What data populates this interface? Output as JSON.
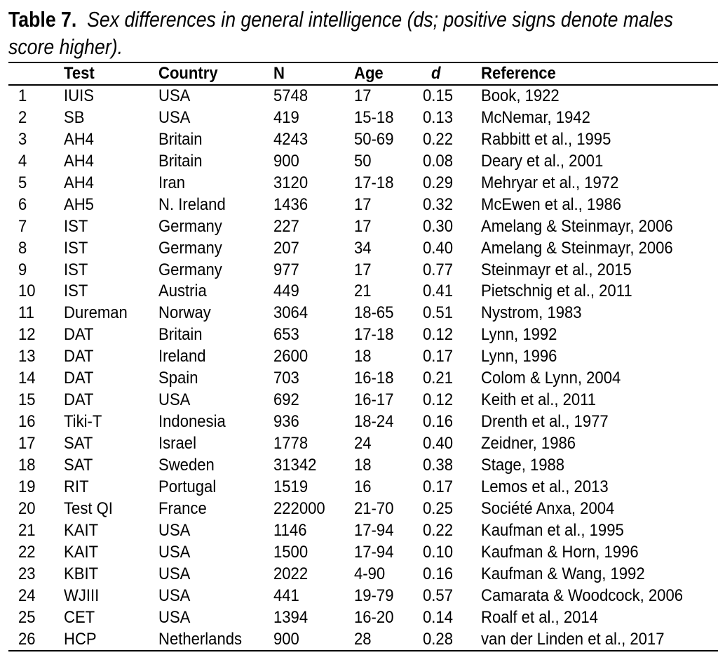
{
  "caption": {
    "label": "Table 7.",
    "line1": "Sex differences in general intelligence (ds; positive signs denote males",
    "line2": "score higher)."
  },
  "table": {
    "headers": [
      "",
      "Test",
      "Country",
      "N",
      "Age",
      "d",
      "Reference"
    ],
    "rows": [
      [
        "1",
        "IUIS",
        "USA",
        "5748",
        "17",
        "0.15",
        "Book, 1922"
      ],
      [
        "2",
        "SB",
        "USA",
        "419",
        "15-18",
        "0.13",
        "McNemar, 1942"
      ],
      [
        "3",
        "AH4",
        "Britain",
        "4243",
        "50-69",
        "0.22",
        "Rabbitt et al., 1995"
      ],
      [
        "4",
        "AH4",
        "Britain",
        "900",
        "50",
        "0.08",
        "Deary et al., 2001"
      ],
      [
        "5",
        "AH4",
        "Iran",
        "3120",
        "17-18",
        "0.29",
        "Mehryar et al., 1972"
      ],
      [
        "6",
        "AH5",
        "N. Ireland",
        "1436",
        "17",
        "0.32",
        "McEwen et al., 1986"
      ],
      [
        "7",
        "IST",
        "Germany",
        "227",
        "17",
        "0.30",
        "Amelang & Steinmayr, 2006"
      ],
      [
        "8",
        "IST",
        "Germany",
        "207",
        "34",
        "0.40",
        "Amelang & Steinmayr, 2006"
      ],
      [
        "9",
        "IST",
        "Germany",
        "977",
        "17",
        "0.77",
        "Steinmayr et al., 2015"
      ],
      [
        "10",
        "IST",
        "Austria",
        "449",
        "21",
        "0.41",
        "Pietschnig et al., 2011"
      ],
      [
        "11",
        "Dureman",
        "Norway",
        "3064",
        "18-65",
        "0.51",
        "Nystrom, 1983"
      ],
      [
        "12",
        "DAT",
        "Britain",
        "653",
        "17-18",
        "0.12",
        "Lynn, 1992"
      ],
      [
        "13",
        "DAT",
        "Ireland",
        "2600",
        "18",
        "0.17",
        "Lynn, 1996"
      ],
      [
        "14",
        "DAT",
        "Spain",
        "703",
        "16-18",
        "0.21",
        "Colom & Lynn, 2004"
      ],
      [
        "15",
        "DAT",
        "USA",
        "692",
        "16-17",
        "0.12",
        "Keith et al., 2011"
      ],
      [
        "16",
        "Tiki-T",
        "Indonesia",
        "936",
        "18-24",
        "0.16",
        "Drenth et al., 1977"
      ],
      [
        "17",
        "SAT",
        "Israel",
        "1778",
        "24",
        "0.40",
        "Zeidner, 1986"
      ],
      [
        "18",
        "SAT",
        "Sweden",
        "31342",
        "18",
        "0.38",
        "Stage, 1988"
      ],
      [
        "19",
        "RIT",
        "Portugal",
        "1519",
        "16",
        "0.17",
        "Lemos et al., 2013"
      ],
      [
        "20",
        "Test QI",
        "France",
        "222000",
        "21-70",
        "0.25",
        "Société Anxa, 2004"
      ],
      [
        "21",
        "KAIT",
        "USA",
        "1146",
        "17-94",
        "0.22",
        "Kaufman et al., 1995"
      ],
      [
        "22",
        "KAIT",
        "USA",
        "1500",
        "17-94",
        "0.10",
        "Kaufman & Horn, 1996"
      ],
      [
        "23",
        "KBIT",
        "USA",
        "2022",
        "4-90",
        "0.16",
        "Kaufman & Wang, 1992"
      ],
      [
        "24",
        "WJIII",
        "USA",
        "441",
        "19-79",
        "0.57",
        "Camarata & Woodcock, 2006"
      ],
      [
        "25",
        "CET",
        "USA",
        "1394",
        "16-20",
        "0.14",
        "Roalf et al., 2014"
      ],
      [
        "26",
        "HCP",
        "Netherlands",
        "900",
        "28",
        "0.28",
        "van der Linden et al., 2017"
      ]
    ]
  }
}
